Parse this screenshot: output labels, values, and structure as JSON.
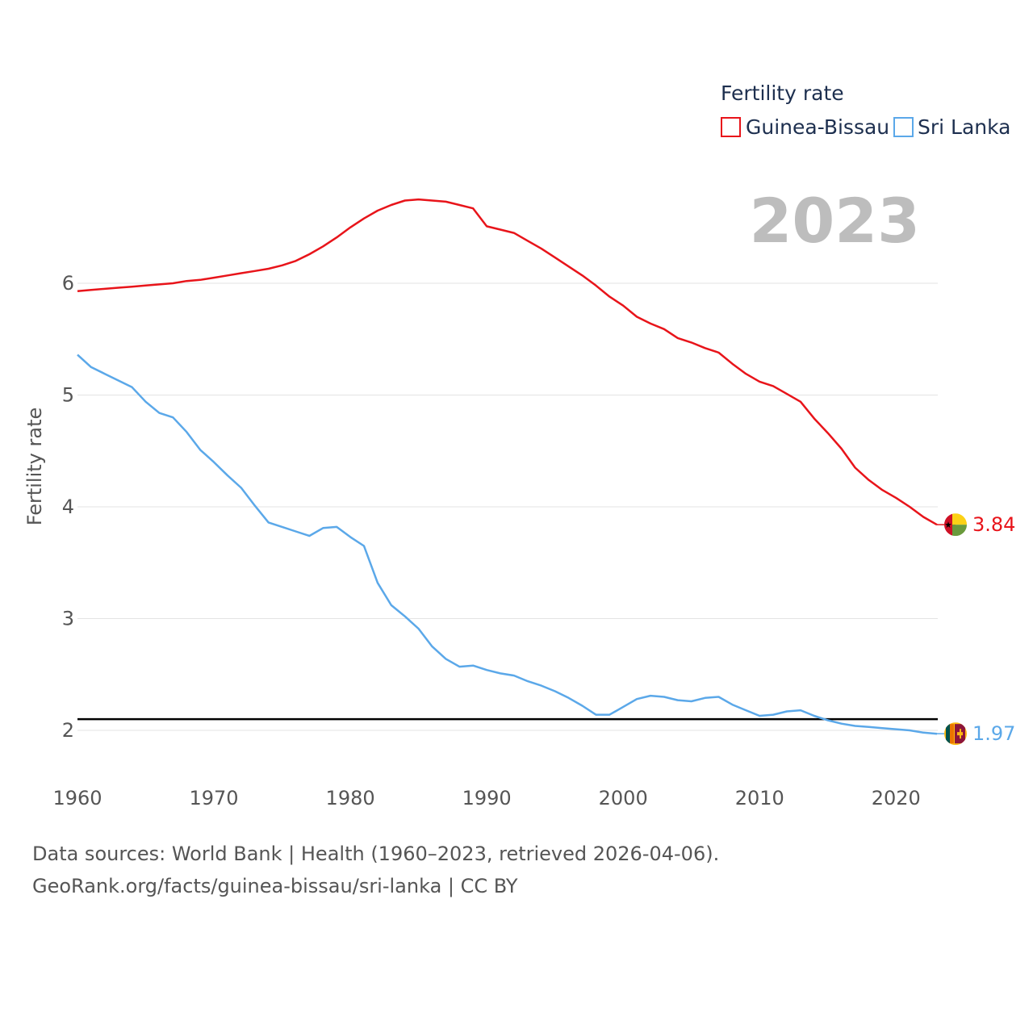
{
  "source_line": "Data sources: World Bank | Health (1960–2023, retrieved 2026-04-06).",
  "credit_line": "GeoRank.org/facts/guinea-bissau/sri-lanka | CC BY",
  "chart_data": {
    "type": "line",
    "title": "",
    "legend_title": "Fertility rate",
    "ylabel": "Fertility rate",
    "xlabel": "",
    "year_label": "2023",
    "xlim": [
      1960,
      2023
    ],
    "ylim": [
      1.7,
      7.1
    ],
    "x_ticks": [
      1960,
      1970,
      1980,
      1990,
      2000,
      2010,
      2020
    ],
    "y_ticks": [
      2,
      3,
      4,
      5,
      6
    ],
    "grid": true,
    "legend_position": "top-right",
    "reference_line": {
      "value": 2.1,
      "color": "#000000"
    },
    "x": [
      1960,
      1961,
      1962,
      1963,
      1964,
      1965,
      1966,
      1967,
      1968,
      1969,
      1970,
      1971,
      1972,
      1973,
      1974,
      1975,
      1976,
      1977,
      1978,
      1979,
      1980,
      1981,
      1982,
      1983,
      1984,
      1985,
      1986,
      1987,
      1988,
      1989,
      1990,
      1991,
      1992,
      1993,
      1994,
      1995,
      1996,
      1997,
      1998,
      1999,
      2000,
      2001,
      2002,
      2003,
      2004,
      2005,
      2006,
      2007,
      2008,
      2009,
      2010,
      2011,
      2012,
      2013,
      2014,
      2015,
      2016,
      2017,
      2018,
      2019,
      2020,
      2021,
      2022,
      2023
    ],
    "series": [
      {
        "name": "Guinea-Bissau",
        "color": "#e8141a",
        "end_label": "3.84",
        "values": [
          5.93,
          5.94,
          5.95,
          5.96,
          5.97,
          5.98,
          5.99,
          6.0,
          6.02,
          6.03,
          6.05,
          6.07,
          6.09,
          6.11,
          6.13,
          6.16,
          6.2,
          6.26,
          6.33,
          6.41,
          6.5,
          6.58,
          6.65,
          6.7,
          6.74,
          6.75,
          6.74,
          6.73,
          6.7,
          6.67,
          6.51,
          6.48,
          6.45,
          6.38,
          6.31,
          6.23,
          6.15,
          6.07,
          5.98,
          5.88,
          5.8,
          5.7,
          5.64,
          5.59,
          5.51,
          5.47,
          5.42,
          5.38,
          5.28,
          5.19,
          5.12,
          5.08,
          5.01,
          4.94,
          4.79,
          4.66,
          4.52,
          4.35,
          4.24,
          4.15,
          4.08,
          4.0,
          3.91,
          3.84
        ]
      },
      {
        "name": "Sri Lanka",
        "color": "#5ba8e9",
        "end_label": "1.97",
        "values": [
          5.36,
          5.25,
          5.19,
          5.13,
          5.07,
          4.94,
          4.84,
          4.8,
          4.67,
          4.51,
          4.4,
          4.28,
          4.17,
          4.01,
          3.86,
          3.82,
          3.78,
          3.74,
          3.81,
          3.82,
          3.73,
          3.65,
          3.32,
          3.12,
          3.02,
          2.91,
          2.75,
          2.64,
          2.57,
          2.58,
          2.54,
          2.51,
          2.49,
          2.44,
          2.4,
          2.35,
          2.29,
          2.22,
          2.14,
          2.14,
          2.21,
          2.28,
          2.31,
          2.3,
          2.27,
          2.26,
          2.29,
          2.3,
          2.23,
          2.18,
          2.13,
          2.14,
          2.17,
          2.18,
          2.13,
          2.09,
          2.06,
          2.04,
          2.03,
          2.02,
          2.01,
          2.0,
          1.98,
          1.97
        ]
      }
    ]
  }
}
